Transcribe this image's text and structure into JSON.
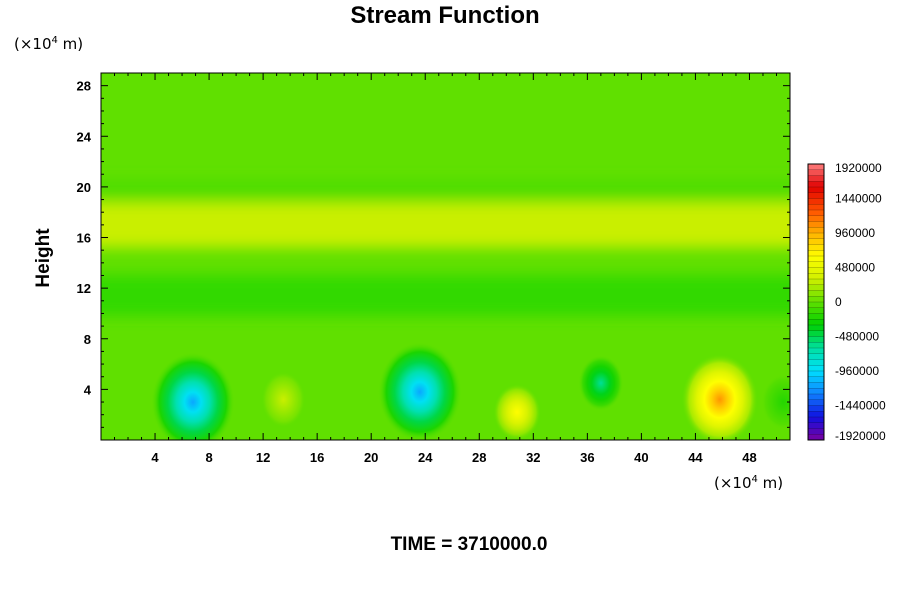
{
  "chart_data": {
    "type": "heatmap",
    "title": "Stream Function",
    "ylabel": "Height",
    "xlabel": "",
    "x_unit": {
      "prefix": "(×10",
      "exponent": "4",
      "suffix": " m)"
    },
    "y_unit": {
      "prefix": "(×10",
      "exponent": "4",
      "suffix": " m)"
    },
    "xlim": [
      0,
      51
    ],
    "ylim": [
      0,
      29
    ],
    "x_ticks": [
      4,
      8,
      12,
      16,
      20,
      24,
      28,
      32,
      36,
      40,
      44,
      48
    ],
    "y_ticks": [
      4,
      8,
      12,
      16,
      20,
      24,
      28
    ],
    "colorbar": {
      "range": [
        -1920000,
        1920000
      ],
      "labels": [
        "1920000",
        "1440000",
        "960000",
        "480000",
        "0",
        "-480000",
        "-960000",
        "-1440000",
        "-1920000"
      ],
      "stops": [
        "#7a00a0",
        "#1010e0",
        "#1080ff",
        "#00e0ff",
        "#00e0a0",
        "#00d000",
        "#60e000",
        "#d0f000",
        "#ffff00",
        "#ffb000",
        "#ff5000",
        "#e00000",
        "#ff8080"
      ]
    },
    "background_value": 0,
    "bands": [
      {
        "y_center": 19.8,
        "half_width": 0.7,
        "value": -60000
      },
      {
        "y_center": 17.0,
        "half_width": 1.8,
        "value": 300000
      },
      {
        "y_center": 11.4,
        "half_width": 1.6,
        "value": -150000
      }
    ],
    "extrema": [
      {
        "x": 6.8,
        "y": 3.0,
        "value": -1150000
      },
      {
        "x": 13.5,
        "y": 3.2,
        "value": 300000
      },
      {
        "x": 23.6,
        "y": 3.8,
        "value": -1150000
      },
      {
        "x": 30.8,
        "y": 2.2,
        "value": 650000
      },
      {
        "x": 37.0,
        "y": 4.5,
        "value": -620000
      },
      {
        "x": 45.8,
        "y": 3.2,
        "value": 1050000
      },
      {
        "x": 50.5,
        "y": 3.0,
        "value": -200000
      }
    ]
  },
  "footer": {
    "time_label": "TIME = 3710000.0"
  }
}
